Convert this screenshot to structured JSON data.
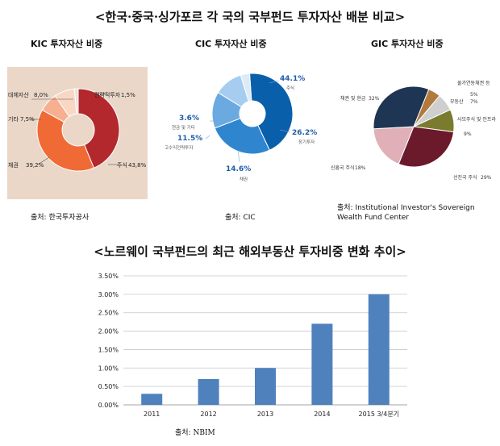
{
  "headings": {
    "top_title": "<한국·중국·싱가포르 각 국의 국부펀드 투자자산 배분 비교>",
    "bottom_title": "<노르웨이 국부펀드의 최근 해외부동산 투자비중 변화 추이>"
  },
  "colors": {
    "kic_panel_bg": "#ead7c8",
    "bar": "#4f81bd"
  },
  "chart_data": [
    {
      "type": "pie",
      "title": "KIC 투자자산 비중",
      "source": "출처: 한국투자공사",
      "slices": [
        {
          "label": "주식",
          "value_text": "43,8%",
          "value": 43.8,
          "color": "#b3282d"
        },
        {
          "label": "채권",
          "value_text": "39,2%",
          "value": 39.2,
          "color": "#f06a35"
        },
        {
          "label": "기타",
          "value_text": "7,5%",
          "value": 7.5,
          "color": "#f7b08f"
        },
        {
          "label": "대체자산",
          "value_text": "8,0%",
          "value": 8.0,
          "color": "#f9d7c3"
        },
        {
          "label": "전략적투자",
          "value_text": "1,5%",
          "value": 1.5,
          "color": "#e8e0dc"
        }
      ]
    },
    {
      "type": "pie",
      "title": "CIC 투자자산 비중",
      "source": "출처: CIC",
      "slices": [
        {
          "label": "주식",
          "value_text": "44.1%",
          "value": 44.1,
          "color": "#0a5fab"
        },
        {
          "label": "장기투자",
          "value_text": "26.2%",
          "value": 26.2,
          "color": "#2f86cf"
        },
        {
          "label": "채권",
          "value_text": "14.6%",
          "value": 14.6,
          "color": "#6aaae0"
        },
        {
          "label": "고수익전략투자",
          "value_text": "11.5%",
          "value": 11.5,
          "color": "#a6cdef"
        },
        {
          "label": "현금 및 기타",
          "value_text": "3.6%",
          "value": 3.6,
          "color": "#dcebf7"
        }
      ]
    },
    {
      "type": "pie",
      "title": "GIC 투자자산 비중",
      "source": "출처: Institutional Investor's Sovereign Wealth Fund Center",
      "slices": [
        {
          "label": "물가연동채권 등",
          "value_text": "5%",
          "value": 5,
          "color": "#b07a3e"
        },
        {
          "label": "부동산",
          "value_text": "7%",
          "value": 7,
          "color": "#cfcfcf"
        },
        {
          "label": "사모주식 및 인프라",
          "value_text": "9%",
          "value": 9,
          "color": "#7a7b2e"
        },
        {
          "label": "선진국 주식",
          "value_text": "29%",
          "value": 29,
          "color": "#6b1a2c"
        },
        {
          "label": "신흥국 주식",
          "value_text": "18%",
          "value": 18,
          "color": "#e1afb8"
        },
        {
          "label": "채권 및 현금",
          "value_text": "32%",
          "value": 32,
          "color": "#1e3553"
        }
      ]
    },
    {
      "type": "bar",
      "source": "출처: NBIM",
      "categories": [
        "2011",
        "2012",
        "2013",
        "2014",
        "2015 3/4분기"
      ],
      "values": [
        0.3,
        0.7,
        1.0,
        2.2,
        3.0
      ],
      "ylim": [
        0,
        3.5
      ],
      "yticks": [
        "0.00%",
        "0.50%",
        "1.00%",
        "1.50%",
        "2.00%",
        "2.50%",
        "3.00%",
        "3.50%"
      ],
      "grid": true
    }
  ]
}
